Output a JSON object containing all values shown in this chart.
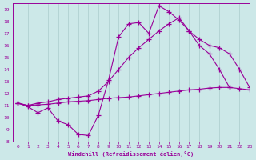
{
  "xlabel": "Windchill (Refroidissement éolien,°C)",
  "bg_color": "#cce8e8",
  "line_color": "#990099",
  "grid_color": "#aacccc",
  "xlim": [
    -0.5,
    23
  ],
  "ylim": [
    8,
    19.5
  ],
  "xticks": [
    0,
    1,
    2,
    3,
    4,
    5,
    6,
    7,
    8,
    9,
    10,
    11,
    12,
    13,
    14,
    15,
    16,
    17,
    18,
    19,
    20,
    21,
    22,
    23
  ],
  "yticks": [
    8,
    9,
    10,
    11,
    12,
    13,
    14,
    15,
    16,
    17,
    18,
    19
  ],
  "line1_x": [
    0,
    1,
    2,
    3,
    4,
    5,
    6,
    7,
    8,
    9,
    10,
    11,
    12,
    13,
    14,
    15,
    16,
    17,
    18,
    19,
    20,
    21
  ],
  "line1_y": [
    11.2,
    10.9,
    10.4,
    10.8,
    9.7,
    9.4,
    8.6,
    8.5,
    10.2,
    13.1,
    16.7,
    17.8,
    17.9,
    17.0,
    19.3,
    18.8,
    18.1,
    17.2,
    16.0,
    15.3,
    14.0,
    12.5
  ],
  "line2_x": [
    0,
    1,
    2,
    3,
    4,
    5,
    6,
    7,
    8,
    9,
    10,
    11,
    12,
    13,
    14,
    15,
    16,
    17,
    18,
    19,
    20,
    21,
    22,
    23
  ],
  "line2_y": [
    11.2,
    11.0,
    11.2,
    11.3,
    11.5,
    11.6,
    11.7,
    11.8,
    12.2,
    13.0,
    14.0,
    15.0,
    15.8,
    16.5,
    17.2,
    17.8,
    18.3,
    17.2,
    16.5,
    16.0,
    15.8,
    15.3,
    14.0,
    12.5
  ],
  "line3_x": [
    0,
    1,
    2,
    3,
    4,
    5,
    6,
    7,
    8,
    9,
    10,
    11,
    12,
    13,
    14,
    15,
    16,
    17,
    18,
    19,
    20,
    21,
    22,
    23
  ],
  "line3_y": [
    11.2,
    11.0,
    11.05,
    11.1,
    11.2,
    11.3,
    11.35,
    11.4,
    11.5,
    11.6,
    11.65,
    11.7,
    11.8,
    11.9,
    12.0,
    12.1,
    12.2,
    12.3,
    12.35,
    12.45,
    12.5,
    12.5,
    12.4,
    12.3
  ]
}
